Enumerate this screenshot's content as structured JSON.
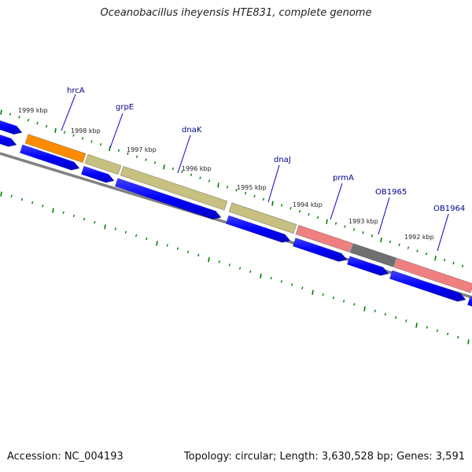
{
  "title": "Oceanobacillus iheyensis HTE831, complete genome",
  "footer": {
    "accession": "Accession: NC_004193",
    "summary": "Topology: circular; Length: 3,630,528 bp; Genes: 3,591"
  },
  "kbp_labels": [
    "1999 kbp",
    "1998 kbp",
    "1997 kbp",
    "1996 kbp",
    "1995 kbp",
    "1994 kbp",
    "1993 kbp",
    "1992 kbp"
  ],
  "genes": [
    {
      "name": "hrcA",
      "color": "#ff8c00"
    },
    {
      "name": "grpE",
      "color": "#c8c080"
    },
    {
      "name": "dnaK",
      "color": "#c8c080"
    },
    {
      "name": "dnaJ",
      "color": "#c8c080"
    },
    {
      "name": "prmA",
      "color": "#f08080"
    },
    {
      "name": "OB1965",
      "color": "#707070"
    },
    {
      "name": "OB1964",
      "color": "#f08080"
    }
  ],
  "colors": {
    "cds": "#0000ff",
    "tick": "#008000",
    "backbone": "#808080",
    "gene_label": "#00008b"
  }
}
